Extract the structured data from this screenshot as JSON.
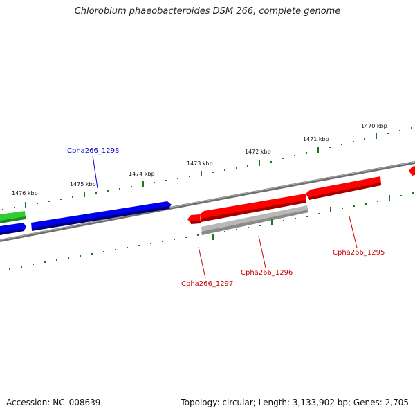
{
  "title": "Chlorobium phaeobacteroides DSM 266, complete genome",
  "footer": {
    "accession": "Accession: NC_008639",
    "topology": "Topology: circular; Length: 3,133,902 bp; Genes: 2,705"
  },
  "colors": {
    "forward_gene": "#ff0000",
    "reverse_gene": "#0000ff",
    "other_gene": "#33cc33",
    "rna_gene": "#aaaaaa",
    "backbone": "#808080",
    "ticks": "#1a7a1a"
  },
  "scale_ticks": [
    {
      "label": "1476 kbp"
    },
    {
      "label": "1475 kbp"
    },
    {
      "label": "1474 kbp"
    },
    {
      "label": "1473 kbp"
    },
    {
      "label": "1472 kbp"
    },
    {
      "label": "1471 kbp"
    },
    {
      "label": "1470 kbp"
    }
  ],
  "gene_labels": [
    {
      "name": "Cpha266_1298",
      "strand": "reverse"
    },
    {
      "name": "Cpha266_1297",
      "strand": "forward"
    },
    {
      "name": "Cpha266_1296",
      "strand": "forward"
    },
    {
      "name": "Cpha266_1295",
      "strand": "forward"
    }
  ]
}
